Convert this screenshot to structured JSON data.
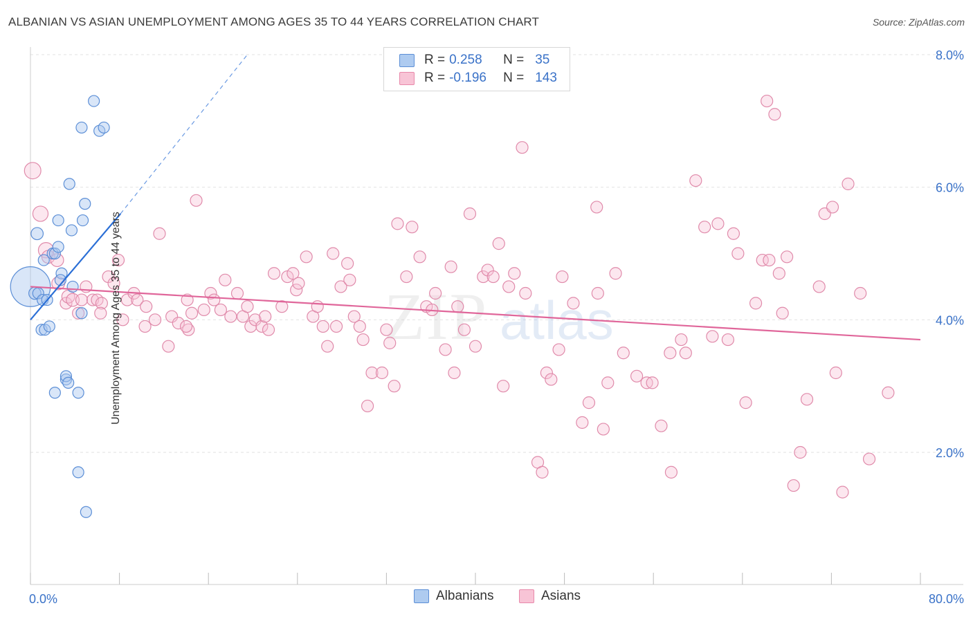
{
  "title": "ALBANIAN VS ASIAN UNEMPLOYMENT AMONG AGES 35 TO 44 YEARS CORRELATION CHART",
  "source": "Source: ZipAtlas.com",
  "watermark": {
    "part1": "ZIP",
    "part2": "atlas"
  },
  "legend": {
    "r_label": "R =",
    "n_label": "N =",
    "rows": [
      {
        "r": "0.258",
        "n": "35",
        "fill": "#aecbf0",
        "stroke": "#5b8ed6"
      },
      {
        "r": "-0.196",
        "n": "143",
        "fill": "#f8c4d6",
        "stroke": "#e888aa"
      }
    ]
  },
  "bottom_legend": [
    {
      "label": "Albanians",
      "fill": "#aecbf0",
      "stroke": "#5b8ed6"
    },
    {
      "label": "Asians",
      "fill": "#f8c4d6",
      "stroke": "#e888aa"
    }
  ],
  "colors": {
    "albanian_fill": "rgba(170,200,240,0.45)",
    "albanian_stroke": "#5b8ed6",
    "albanian_line": "#2b6fd6",
    "asian_fill": "rgba(248,196,214,0.4)",
    "asian_stroke": "#e08aaa",
    "asian_line": "#e0669a",
    "tick_label": "#3a72c8",
    "grid": "#e2e2e2"
  },
  "chart_data": {
    "type": "scatter",
    "title": "ALBANIAN VS ASIAN UNEMPLOYMENT AMONG AGES 35 TO 44 YEARS CORRELATION CHART",
    "xlabel": "",
    "ylabel": "Unemployment Among Ages 35 to 44 years",
    "xlim": [
      0,
      80
    ],
    "ylim": [
      0,
      8
    ],
    "x_tick_labels": [
      "0.0%",
      "80.0%"
    ],
    "y_ticks": [
      2,
      4,
      6,
      8
    ],
    "y_tick_labels": [
      "2.0%",
      "4.0%",
      "6.0%",
      "8.0%"
    ],
    "grid": true,
    "legend_position": "top-center",
    "series": [
      {
        "name": "Albanians",
        "trend": {
          "x": [
            0,
            8.1
          ],
          "y": [
            4.0,
            5.6
          ],
          "dashed_to": [
            19.5,
            8.0
          ]
        },
        "points": [
          [
            0.0,
            4.5,
            36
          ],
          [
            0.6,
            5.3,
            11
          ],
          [
            0.4,
            4.4,
            11
          ],
          [
            0.7,
            4.4,
            10
          ],
          [
            1.0,
            3.85,
            10
          ],
          [
            1.3,
            3.85,
            10
          ],
          [
            1.1,
            4.3,
            10
          ],
          [
            1.5,
            4.3,
            10
          ],
          [
            1.7,
            3.9,
            10
          ],
          [
            1.2,
            4.9,
            10
          ],
          [
            2.0,
            5.0,
            10
          ],
          [
            2.2,
            5.0,
            10
          ],
          [
            2.8,
            4.7,
            10
          ],
          [
            2.7,
            4.6,
            10
          ],
          [
            2.5,
            5.1,
            10
          ],
          [
            2.5,
            5.5,
            10
          ],
          [
            2.2,
            2.9,
            10
          ],
          [
            3.2,
            3.1,
            10
          ],
          [
            3.2,
            3.15,
            10
          ],
          [
            3.4,
            3.05,
            10
          ],
          [
            3.5,
            6.05,
            10
          ],
          [
            3.7,
            5.35,
            10
          ],
          [
            3.8,
            4.5,
            10
          ],
          [
            4.3,
            2.9,
            10
          ],
          [
            4.3,
            1.7,
            10
          ],
          [
            4.6,
            6.9,
            10
          ],
          [
            4.6,
            4.1,
            10
          ],
          [
            4.7,
            5.5,
            10
          ],
          [
            4.9,
            5.75,
            10
          ],
          [
            5.0,
            1.1,
            10
          ],
          [
            5.7,
            7.3,
            10
          ],
          [
            6.2,
            6.85,
            10
          ],
          [
            6.6,
            6.9,
            10
          ]
        ]
      },
      {
        "name": "Asians",
        "trend": {
          "x": [
            0,
            80
          ],
          "y": [
            4.5,
            3.7
          ]
        },
        "points": [
          [
            0.2,
            6.25,
            14
          ],
          [
            0.9,
            5.6,
            13
          ],
          [
            1.4,
            5.05,
            13
          ],
          [
            1.6,
            4.95,
            11
          ],
          [
            2.4,
            4.9,
            11
          ],
          [
            2.5,
            4.55,
            11
          ],
          [
            3.2,
            4.25,
            10
          ],
          [
            3.4,
            4.35,
            11
          ],
          [
            3.8,
            4.3,
            11
          ],
          [
            4.3,
            4.1,
            10
          ],
          [
            4.6,
            4.3,
            10
          ],
          [
            5.0,
            4.5,
            10
          ],
          [
            5.6,
            4.3,
            10
          ],
          [
            6.0,
            4.3,
            10
          ],
          [
            6.4,
            4.25,
            10
          ],
          [
            6.3,
            4.1,
            10
          ],
          [
            7.0,
            4.65,
            10
          ],
          [
            7.5,
            4.55,
            10
          ],
          [
            7.9,
            4.9,
            10
          ],
          [
            8.3,
            4.0,
            10
          ],
          [
            8.7,
            4.3,
            10
          ],
          [
            9.3,
            4.4,
            10
          ],
          [
            9.6,
            4.3,
            10
          ],
          [
            10.4,
            4.2,
            10
          ],
          [
            10.3,
            3.9,
            10
          ],
          [
            11.2,
            4.0,
            10
          ],
          [
            11.6,
            5.3,
            10
          ],
          [
            12.4,
            3.6,
            10
          ],
          [
            12.7,
            4.05,
            10
          ],
          [
            13.3,
            3.95,
            10
          ],
          [
            14.1,
            4.3,
            10
          ],
          [
            14.2,
            3.85,
            10
          ],
          [
            14.5,
            4.1,
            10
          ],
          [
            14.0,
            3.9,
            10
          ],
          [
            14.9,
            5.8,
            10
          ],
          [
            15.6,
            4.15,
            10
          ],
          [
            16.2,
            4.4,
            10
          ],
          [
            16.5,
            4.3,
            10
          ],
          [
            17.1,
            4.15,
            10
          ],
          [
            17.5,
            4.6,
            10
          ],
          [
            18.0,
            4.05,
            10
          ],
          [
            18.6,
            4.4,
            10
          ],
          [
            19.1,
            4.05,
            10
          ],
          [
            19.5,
            4.2,
            10
          ],
          [
            19.8,
            3.9,
            10
          ],
          [
            20.2,
            4.0,
            10
          ],
          [
            20.8,
            3.9,
            10
          ],
          [
            21.1,
            4.05,
            10
          ],
          [
            21.4,
            3.85,
            10
          ],
          [
            21.9,
            4.7,
            10
          ],
          [
            22.6,
            4.2,
            10
          ],
          [
            23.1,
            4.65,
            10
          ],
          [
            23.6,
            4.7,
            10
          ],
          [
            23.9,
            4.45,
            10
          ],
          [
            24.1,
            4.55,
            10
          ],
          [
            24.8,
            4.95,
            10
          ],
          [
            25.4,
            4.05,
            10
          ],
          [
            25.8,
            4.2,
            10
          ],
          [
            26.3,
            3.9,
            10
          ],
          [
            26.7,
            3.6,
            10
          ],
          [
            27.2,
            5.0,
            10
          ],
          [
            27.5,
            3.9,
            10
          ],
          [
            27.9,
            4.5,
            10
          ],
          [
            28.5,
            4.85,
            10
          ],
          [
            28.7,
            4.6,
            10
          ],
          [
            29.1,
            4.05,
            10
          ],
          [
            29.6,
            3.9,
            10
          ],
          [
            29.9,
            3.7,
            10
          ],
          [
            30.3,
            2.7,
            10
          ],
          [
            30.7,
            3.2,
            10
          ],
          [
            31.6,
            3.2,
            10
          ],
          [
            32.0,
            3.85,
            10
          ],
          [
            32.3,
            3.65,
            10
          ],
          [
            32.7,
            3.0,
            10
          ],
          [
            33.0,
            5.45,
            10
          ],
          [
            33.8,
            4.65,
            10
          ],
          [
            34.3,
            5.4,
            10
          ],
          [
            35.0,
            4.95,
            10
          ],
          [
            35.6,
            4.2,
            10
          ],
          [
            36.1,
            4.15,
            10
          ],
          [
            36.4,
            4.4,
            10
          ],
          [
            37.3,
            3.55,
            10
          ],
          [
            37.8,
            4.8,
            10
          ],
          [
            38.1,
            3.2,
            10
          ],
          [
            38.4,
            4.2,
            10
          ],
          [
            39.0,
            3.85,
            10
          ],
          [
            39.5,
            5.6,
            10
          ],
          [
            40.0,
            3.6,
            10
          ],
          [
            40.7,
            4.65,
            10
          ],
          [
            41.1,
            4.75,
            10
          ],
          [
            41.6,
            4.65,
            10
          ],
          [
            42.1,
            5.15,
            10
          ],
          [
            42.5,
            3.0,
            10
          ],
          [
            43.0,
            4.5,
            10
          ],
          [
            43.5,
            4.7,
            10
          ],
          [
            44.2,
            6.6,
            10
          ],
          [
            44.5,
            4.4,
            10
          ],
          [
            45.6,
            1.85,
            10
          ],
          [
            46.0,
            1.7,
            10
          ],
          [
            46.4,
            3.2,
            10
          ],
          [
            46.8,
            3.1,
            10
          ],
          [
            47.5,
            3.55,
            10
          ],
          [
            47.8,
            4.65,
            10
          ],
          [
            48.8,
            4.25,
            10
          ],
          [
            49.6,
            2.45,
            10
          ],
          [
            50.2,
            2.75,
            10
          ],
          [
            50.9,
            5.7,
            10
          ],
          [
            51.5,
            2.35,
            10
          ],
          [
            51.9,
            3.05,
            10
          ],
          [
            52.6,
            4.7,
            10
          ],
          [
            53.3,
            3.5,
            10
          ],
          [
            54.5,
            3.15,
            10
          ],
          [
            55.4,
            3.05,
            10
          ],
          [
            55.9,
            3.05,
            10
          ],
          [
            56.7,
            2.4,
            10
          ],
          [
            57.6,
            1.7,
            10
          ],
          [
            57.5,
            3.5,
            10
          ],
          [
            58.5,
            3.7,
            10
          ],
          [
            58.9,
            3.5,
            10
          ],
          [
            59.8,
            6.1,
            10
          ],
          [
            60.6,
            5.4,
            10
          ],
          [
            61.3,
            3.75,
            10
          ],
          [
            61.8,
            5.45,
            10
          ],
          [
            62.7,
            3.7,
            10
          ],
          [
            63.2,
            5.3,
            10
          ],
          [
            63.6,
            5.0,
            10
          ],
          [
            64.3,
            2.75,
            10
          ],
          [
            65.2,
            4.25,
            10
          ],
          [
            65.8,
            4.9,
            10
          ],
          [
            66.4,
            4.9,
            10
          ],
          [
            67.3,
            4.7,
            10
          ],
          [
            67.6,
            4.1,
            10
          ],
          [
            68.0,
            4.95,
            10
          ],
          [
            68.6,
            1.5,
            10
          ],
          [
            69.2,
            2.0,
            10
          ],
          [
            69.8,
            2.8,
            10
          ],
          [
            70.9,
            4.5,
            10
          ],
          [
            71.4,
            5.6,
            10
          ],
          [
            72.1,
            5.7,
            10
          ],
          [
            72.4,
            3.2,
            10
          ],
          [
            73.0,
            1.4,
            10
          ],
          [
            73.5,
            6.05,
            10
          ],
          [
            74.6,
            4.4,
            10
          ],
          [
            75.4,
            1.9,
            10
          ],
          [
            77.1,
            2.9,
            10
          ],
          [
            66.2,
            7.3,
            10
          ],
          [
            66.9,
            7.1,
            10
          ],
          [
            51.0,
            4.4,
            10
          ]
        ]
      }
    ]
  }
}
